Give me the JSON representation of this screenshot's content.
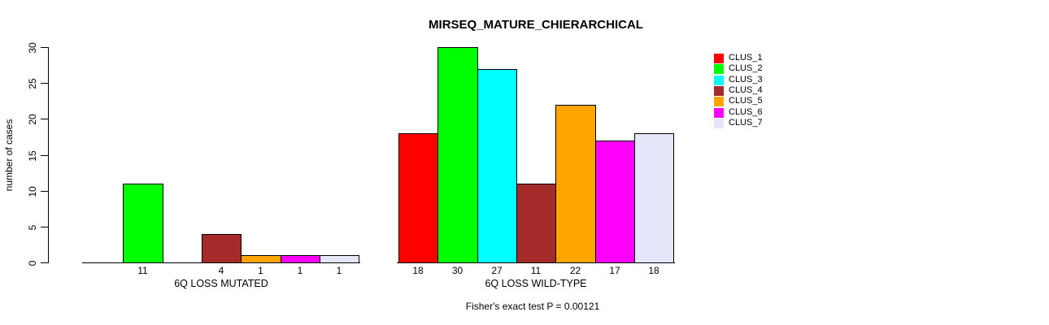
{
  "chart_data": {
    "type": "bar",
    "title": "MIRSEQ_MATURE_CHIERARCHICAL",
    "ylabel": "number of cases",
    "categories": [
      "6Q LOSS MUTATED",
      "6Q LOSS WILD-TYPE"
    ],
    "series": [
      {
        "name": "CLUS_1",
        "color": "#FF0000",
        "values": [
          0,
          18
        ]
      },
      {
        "name": "CLUS_2",
        "color": "#00FF00",
        "values": [
          11,
          30
        ]
      },
      {
        "name": "CLUS_3",
        "color": "#00FFFF",
        "values": [
          0,
          27
        ]
      },
      {
        "name": "CLUS_4",
        "color": "#A52A2A",
        "values": [
          4,
          11
        ]
      },
      {
        "name": "CLUS_5",
        "color": "#FFA500",
        "values": [
          1,
          22
        ]
      },
      {
        "name": "CLUS_6",
        "color": "#FF00FF",
        "values": [
          1,
          17
        ]
      },
      {
        "name": "CLUS_7",
        "color": "#E6E6FA",
        "values": [
          1,
          18
        ]
      }
    ],
    "bar_value_labels": [
      [
        11,
        4,
        1,
        1,
        1
      ],
      [
        18,
        30,
        27,
        11,
        22,
        17,
        18
      ]
    ],
    "ylim": [
      0,
      30
    ],
    "yticks": [
      0,
      5,
      10,
      15,
      20,
      25,
      30
    ],
    "grid": false,
    "legend_position": "right",
    "annotation": "Fisher's exact test P = 0.00121"
  }
}
